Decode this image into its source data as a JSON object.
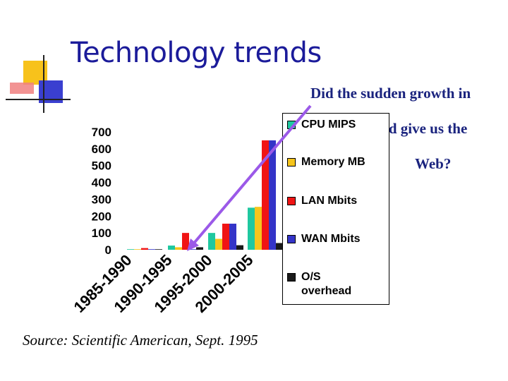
{
  "slide": {
    "title": "Technology trends",
    "annotation_lines": [
      "Did the sudden growth in",
      "in LAN speed give us the",
      "Web?"
    ],
    "source": "Source: Scientific American, Sept. 1995"
  },
  "colors": {
    "title": "#1b1b9a",
    "deco_yellow": "#f7c21b",
    "deco_blue": "#3a3fd0",
    "deco_pink": "#f08080",
    "arrow": "#9b59e8"
  },
  "chart_data": {
    "type": "bar",
    "title": "",
    "xlabel": "",
    "ylabel": "",
    "ylim": [
      0,
      700
    ],
    "yticks": [
      0,
      100,
      200,
      300,
      400,
      500,
      600,
      700
    ],
    "grid": false,
    "legend_position": "right",
    "categories": [
      "1985-1990",
      "1990-1995",
      "1995-2000",
      "2000-2005"
    ],
    "series": [
      {
        "name": "CPU MIPS",
        "color": "#1fc8a0",
        "values": [
          2,
          25,
          100,
          250
        ]
      },
      {
        "name": "Memory MB",
        "color": "#f6c51c",
        "values": [
          1,
          15,
          65,
          255
        ]
      },
      {
        "name": "LAN Mbits",
        "color": "#f01414",
        "values": [
          10,
          100,
          155,
          650
        ]
      },
      {
        "name": "WAN Mbits",
        "color": "#3434c8",
        "values": [
          0,
          3,
          155,
          650
        ]
      },
      {
        "name": "O/S overhead",
        "color": "#1a1a1a",
        "values": [
          3,
          15,
          27,
          40
        ]
      }
    ]
  }
}
